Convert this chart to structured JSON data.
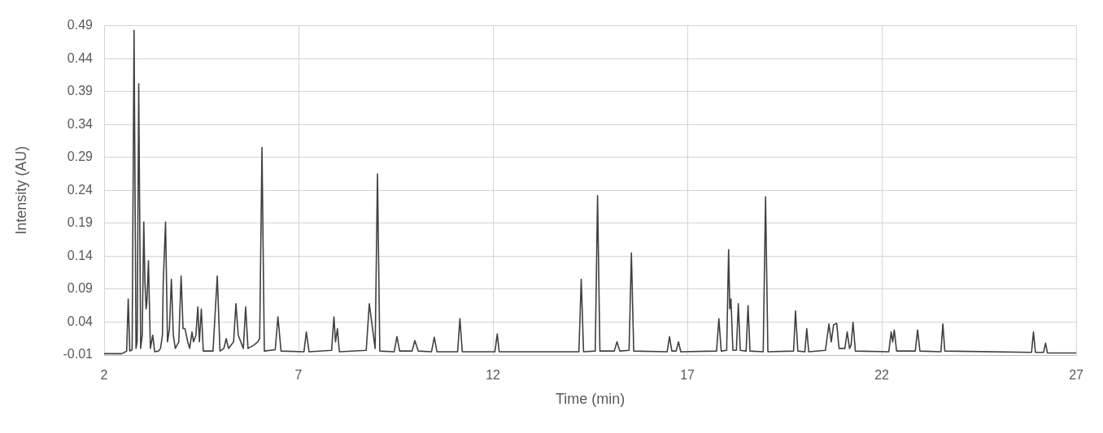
{
  "chart_data": {
    "type": "line",
    "xlabel": "Time (min)",
    "ylabel": "Intensity (AU)",
    "color": "#404040",
    "marker": "none",
    "line_style": "solid",
    "grid": true,
    "xlim": [
      2,
      27
    ],
    "xticks": [
      2,
      7,
      12,
      17,
      22,
      27
    ],
    "ylim": [
      -0.01,
      0.49
    ],
    "yticks": [
      -0.01,
      0.04,
      0.09,
      0.14,
      0.19,
      0.24,
      0.29,
      0.34,
      0.39,
      0.44,
      0.49
    ],
    "x": [
      2,
      2.45,
      2.55,
      2.58,
      2.62,
      2.66,
      2.72,
      2.77,
      2.82,
      2.85,
      2.89,
      2.94,
      2.98,
      3.02,
      3.05,
      3.08,
      3.1,
      3.14,
      3.19,
      3.25,
      3.3,
      3.4,
      3.45,
      3.5,
      3.52,
      3.58,
      3.63,
      3.68,
      3.73,
      3.78,
      3.83,
      3.92,
      3.98,
      4.03,
      4.08,
      4.15,
      4.2,
      4.26,
      4.3,
      4.36,
      4.41,
      4.45,
      4.5,
      4.55,
      4.8,
      4.91,
      4.98,
      5.08,
      5.14,
      5.2,
      5.33,
      5.39,
      5.45,
      5.58,
      5.64,
      5.7,
      5.85,
      5.95,
      6,
      6.06,
      6.12,
      6.4,
      6.47,
      6.55,
      7.14,
      7.2,
      7.27,
      7.85,
      7.91,
      7.95,
      8,
      8.05,
      8.74,
      8.82,
      8.88,
      8.97,
      9.03,
      9.09,
      9.46,
      9.53,
      9.6,
      9.92,
      9.99,
      10.08,
      10.42,
      10.49,
      10.56,
      11.09,
      11.15,
      11.21,
      12.05,
      12.11,
      12.16,
      14.21,
      14.27,
      14.33,
      14.63,
      14.69,
      14.75,
      15.12,
      15.19,
      15.26,
      15.5,
      15.56,
      15.62,
      16.48,
      16.54,
      16.6,
      16.71,
      16.77,
      16.83,
      17.75,
      17.81,
      17.87,
      18.01,
      18.06,
      18.09,
      18.12,
      18.17,
      18.26,
      18.31,
      18.36,
      18.51,
      18.56,
      18.61,
      18.95,
      19.01,
      19.07,
      19.73,
      19.78,
      19.84,
      20.02,
      20.07,
      20.12,
      20.55,
      20.64,
      20.7,
      20.76,
      20.84,
      20.9,
      21.05,
      21.11,
      21.17,
      21.21,
      21.26,
      21.32,
      22.18,
      22.24,
      22.28,
      22.32,
      22.38,
      22.86,
      22.92,
      22.98,
      23.52,
      23.57,
      23.62,
      25.85,
      25.9,
      25.95,
      26.16,
      26.21,
      26.26,
      27
    ],
    "values": [
      -0.008,
      -0.008,
      -0.005,
      -0.004,
      0.075,
      -0.004,
      -0.002,
      0.483,
      0,
      0.01,
      0.402,
      0,
      0.02,
      0.192,
      0.1,
      0.06,
      0.07,
      0.133,
      0,
      0.02,
      -0.005,
      -0.004,
      0,
      0.02,
      0.1,
      0.192,
      0.01,
      0.03,
      0.105,
      0.02,
      0,
      0.01,
      0.11,
      0.03,
      0.03,
      0.01,
      0,
      0.025,
      0.01,
      0.02,
      0.063,
      0.01,
      0.06,
      -0.004,
      -0.004,
      0.11,
      -0.004,
      0,
      0.015,
      0,
      0.01,
      0.068,
      0.02,
      0,
      0.063,
      0,
      0.005,
      0.01,
      0.015,
      0.305,
      -0.004,
      -0.002,
      0.048,
      -0.004,
      -0.005,
      0.025,
      -0.005,
      -0.003,
      0.048,
      0.01,
      0.03,
      -0.005,
      -0.003,
      0.068,
      0.04,
      0,
      0.265,
      -0.004,
      -0.005,
      0.018,
      -0.004,
      -0.004,
      0.012,
      -0.004,
      -0.005,
      0.017,
      -0.005,
      -0.005,
      0.045,
      -0.005,
      -0.005,
      0.022,
      -0.005,
      -0.005,
      0.105,
      -0.005,
      -0.004,
      0.232,
      -0.004,
      -0.004,
      0.01,
      -0.004,
      -0.003,
      0.145,
      -0.004,
      -0.005,
      0.018,
      -0.004,
      -0.004,
      0.01,
      -0.005,
      -0.004,
      0.045,
      -0.004,
      -0.003,
      0.15,
      0.06,
      0.075,
      -0.003,
      -0.003,
      0.068,
      -0.003,
      -0.004,
      0.065,
      -0.004,
      -0.005,
      0.23,
      -0.005,
      -0.004,
      0.057,
      -0.004,
      -0.005,
      0.03,
      -0.005,
      -0.003,
      0.037,
      0.01,
      0.036,
      0.038,
      0,
      0,
      0.025,
      0,
      0.005,
      0.04,
      -0.004,
      -0.005,
      0.025,
      0.01,
      0.028,
      -0.004,
      -0.004,
      0.028,
      -0.004,
      -0.005,
      0.037,
      -0.004,
      -0.006,
      0.025,
      -0.006,
      -0.006,
      0.008,
      -0.007,
      -0.007
    ]
  }
}
